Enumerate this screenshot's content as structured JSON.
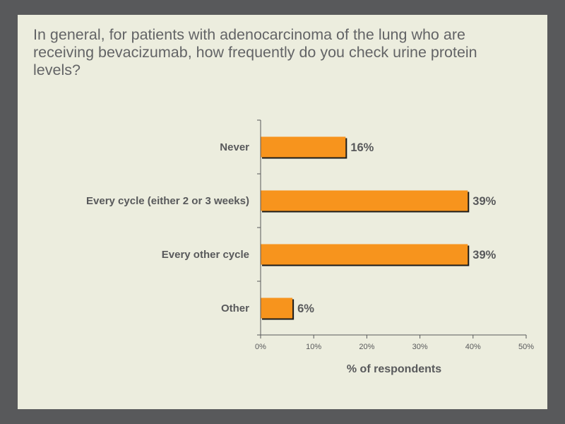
{
  "slide": {
    "question": "In general, for patients with adenocarcinoma of the lung who are receiving bevacizumab, how frequently do you check urine protein levels?"
  },
  "colors": {
    "background": "#58595b",
    "panel": "#ecedde",
    "bar": "#f7941d",
    "text": "#58595b"
  },
  "chart_data": {
    "type": "bar",
    "orientation": "horizontal",
    "categories": [
      "Never",
      "Every cycle (either 2 or 3 weeks)",
      "Every other cycle",
      "Other"
    ],
    "values": [
      16,
      39,
      39,
      6
    ],
    "value_labels": [
      "16%",
      "39%",
      "39%",
      "6%"
    ],
    "xlabel": "% of respondents",
    "xlim": [
      0,
      50
    ],
    "x_ticks": [
      0,
      10,
      20,
      30,
      40,
      50
    ],
    "x_tick_labels": [
      "0%",
      "10%",
      "20%",
      "30%",
      "40%",
      "50%"
    ],
    "grid": false,
    "legend": "none"
  }
}
